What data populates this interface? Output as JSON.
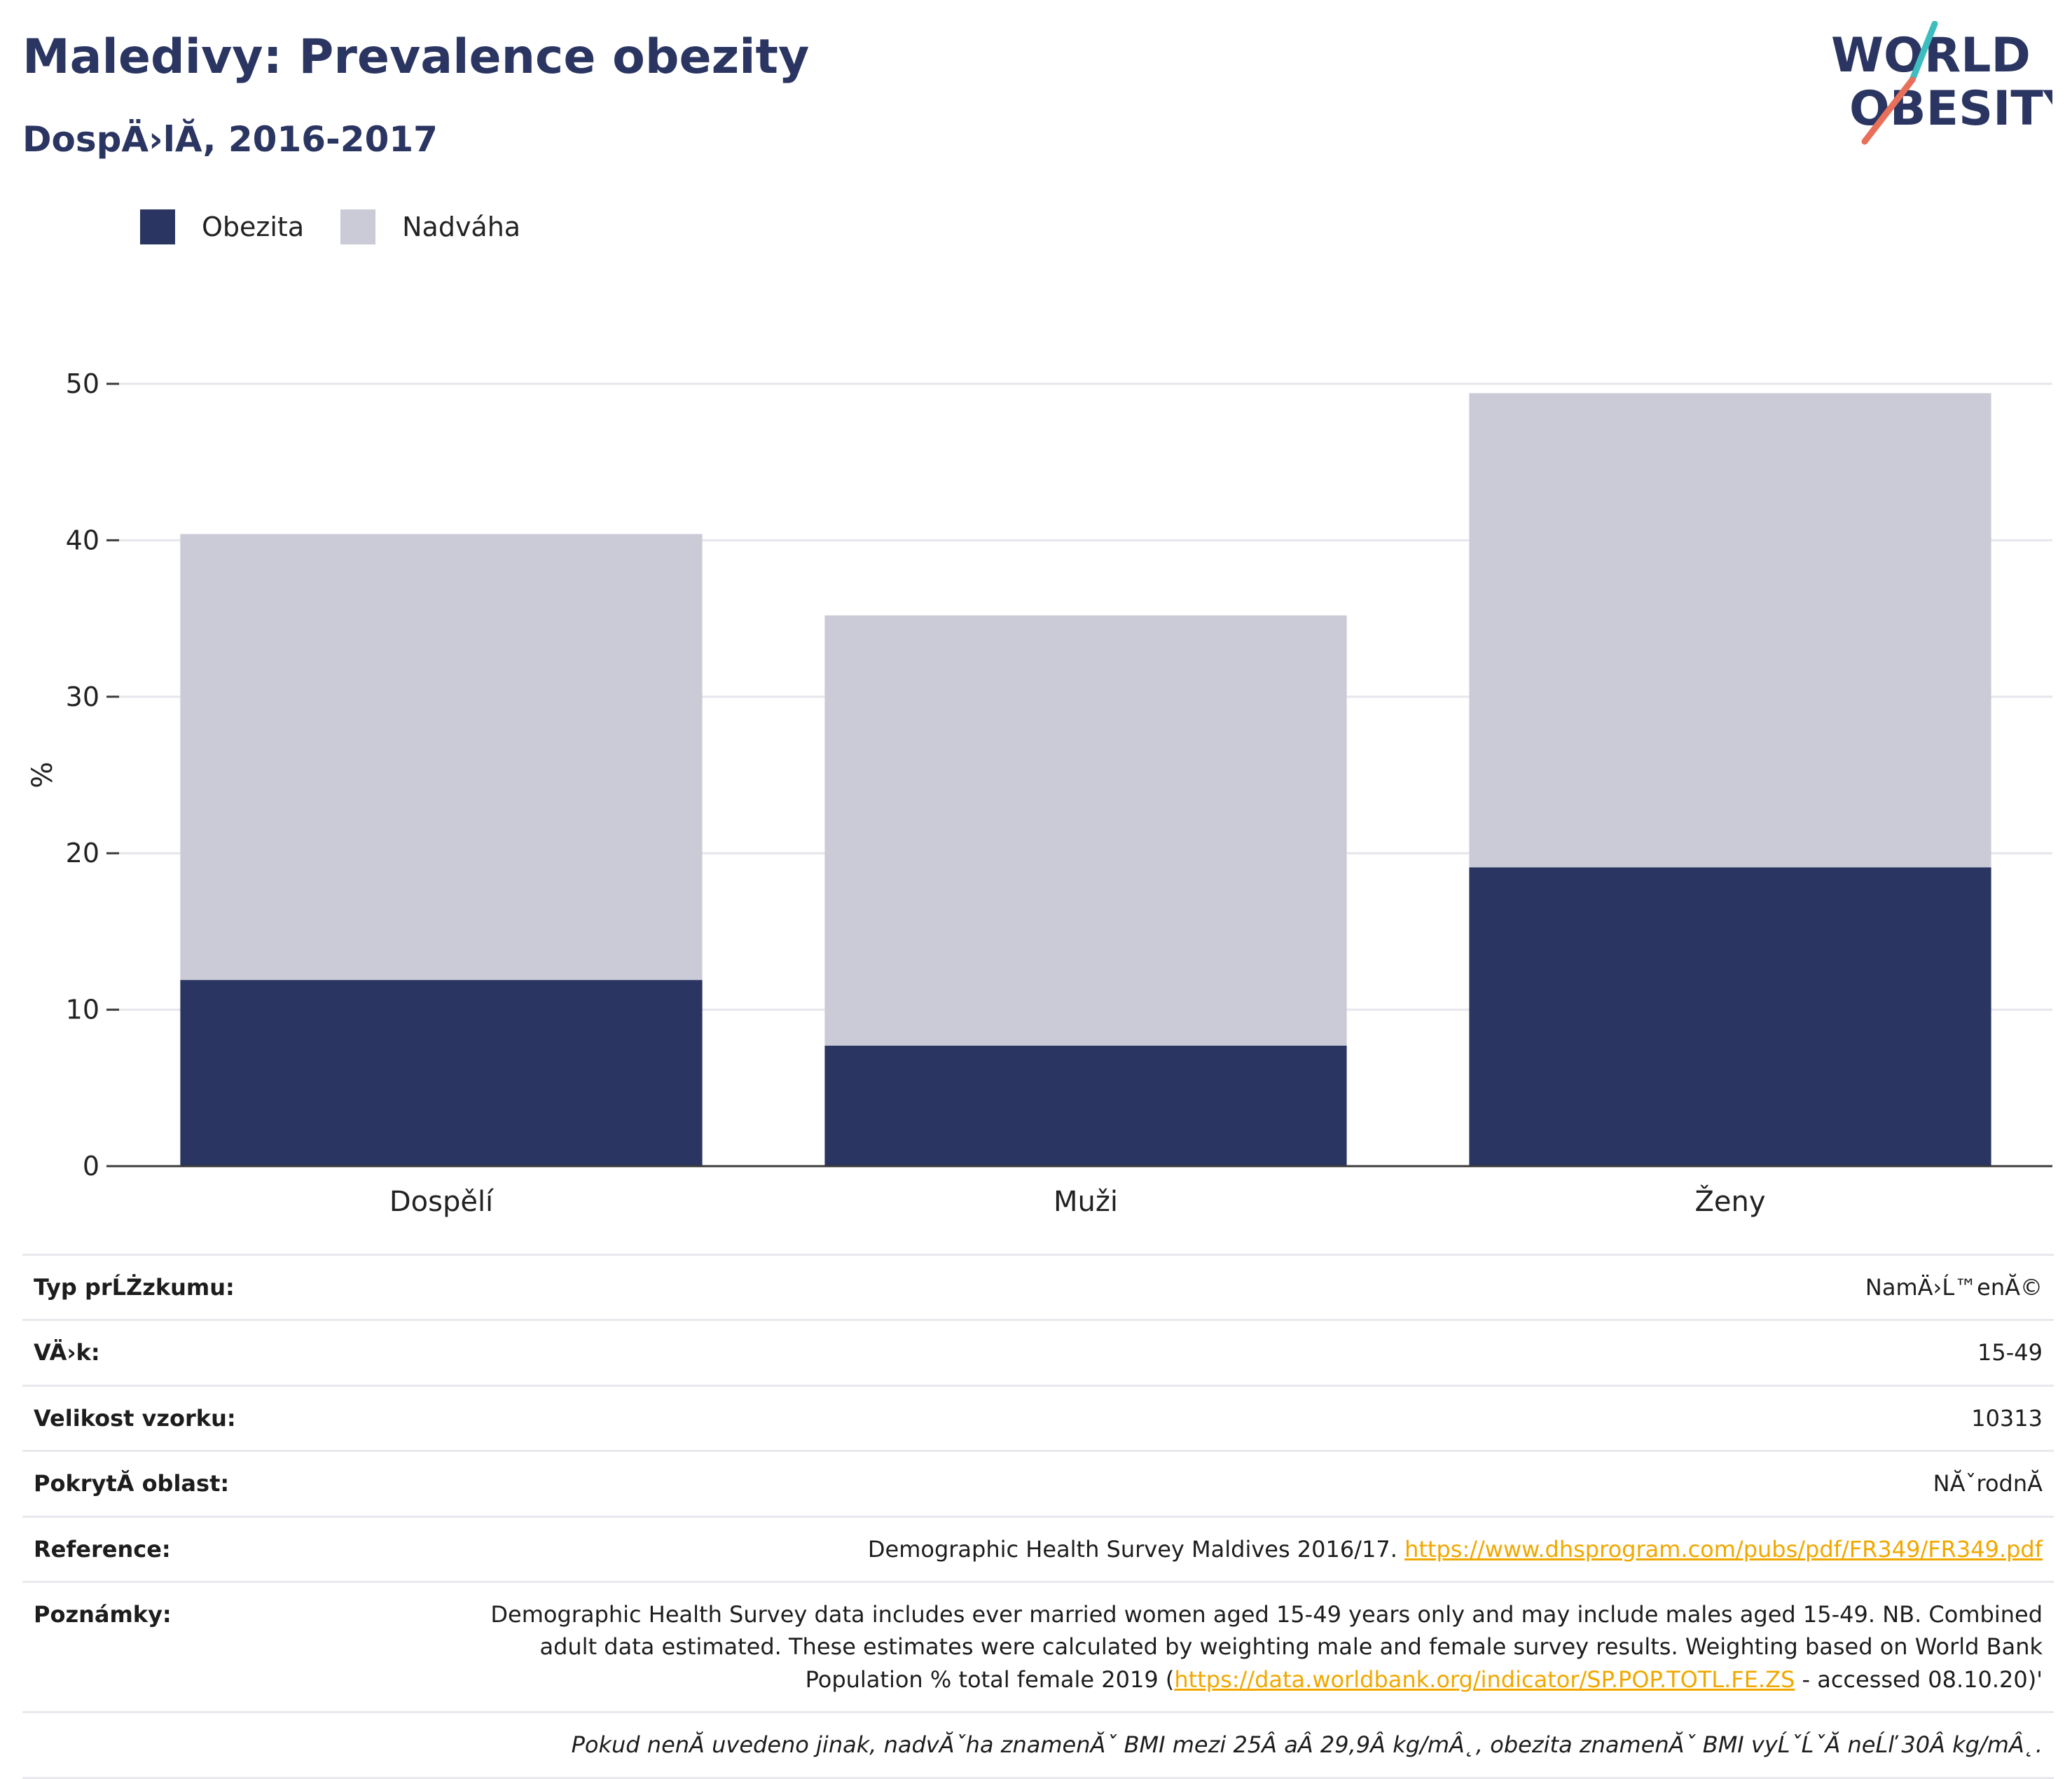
{
  "header": {
    "title": "Maledivy: Prevalence obezity",
    "subtitle": "DospÄ›lĂ, 2016-2017"
  },
  "logo": {
    "line1": "WORLD",
    "line2": "OBESITY",
    "colors": {
      "text": "#2a3561",
      "slash_teal": "#3dbdbf",
      "slash_coral": "#e8705a"
    }
  },
  "legend": {
    "items": [
      {
        "label": "Obezita",
        "color": "#2a3561"
      },
      {
        "label": "Nadváha",
        "color": "#cacbd7"
      }
    ]
  },
  "chart_data": {
    "type": "bar",
    "stacked": true,
    "categories": [
      "Dospělí",
      "Muži",
      "Ženy"
    ],
    "series": [
      {
        "name": "Obezita",
        "color": "#2a3561",
        "values": [
          11.9,
          7.7,
          19.1
        ]
      },
      {
        "name": "Nadváha",
        "color": "#cacbd7",
        "values": [
          28.5,
          27.5,
          30.3
        ]
      }
    ],
    "ylabel": "%",
    "ylim": [
      0,
      50
    ],
    "yticks": [
      0,
      10,
      20,
      30,
      40,
      50
    ],
    "grid": true,
    "legend_position": "top-left"
  },
  "meta": {
    "rows": [
      {
        "key": "Typ prĹŻzkumu:",
        "value": "NamÄ›Ĺ™enĂ©"
      },
      {
        "key": "VÄ›k:",
        "value": "15-49"
      },
      {
        "key": "Velikost vzorku:",
        "value": "10313"
      },
      {
        "key": "PokrytĂ­ oblast:",
        "value": "NĂˇrodnĂ"
      }
    ],
    "reference": {
      "key": "Reference:",
      "text": "Demographic Health Survey Maldives 2016/17. ",
      "link": "https://www.dhsprogram.com/pubs/pdf/FR349/FR349.pdf"
    },
    "notes": {
      "key": "Poznámky:",
      "text_before": "Demographic Health Survey data includes ever married women aged 15-49 years only and may include males aged 15-49. NB. Combined adult data estimated. These estimates were calculated by weighting male and female survey results. Weighting based on World Bank Population % total female 2019 (",
      "link": "https://data.worldbank.org/indicator/SP.POP.TOTL.FE.ZS",
      "text_after": " - accessed 08.10.20)'"
    },
    "footnote": "Pokud nenĂ uvedeno jinak, nadvĂˇha znamenĂˇ BMI mezi 25Â aÂ 29,9Â kg/mÂ˛, obezita znamenĂˇ BMI vyĹˇĹˇĂ neĹľ 30Â kg/mÂ˛."
  }
}
